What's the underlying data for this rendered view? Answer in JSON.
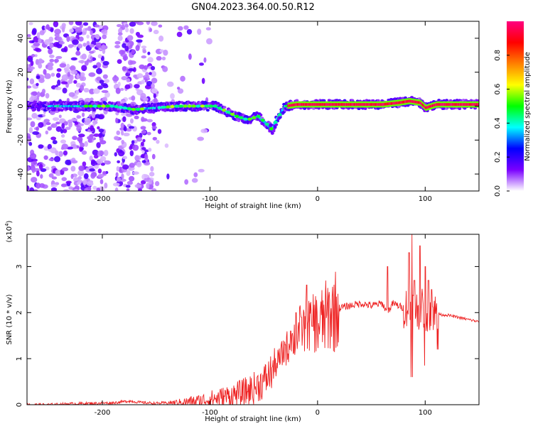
{
  "title": "GN04.2023.364.00.50.R12",
  "chart_data": [
    {
      "type": "heatmap",
      "xlabel": "Height of straight line (km)",
      "ylabel": "Frequency (Hz)",
      "xlim": [
        -270,
        150
      ],
      "ylim": [
        -50,
        50
      ],
      "xticks": [
        "-200",
        "-100",
        "0",
        "100"
      ],
      "xtick_values": [
        -200,
        -100,
        0,
        100
      ],
      "yticks": [
        "-40",
        "-20",
        "0",
        "20",
        "40"
      ],
      "ytick_values": [
        -40,
        -20,
        0,
        20,
        40
      ],
      "colorbar": {
        "label": "Normalized spectral amplitude",
        "range": [
          0,
          1
        ],
        "ticks": [
          "0.0",
          "0.2",
          "0.4",
          "0.6",
          "0.8"
        ],
        "tick_values": [
          0.0,
          0.2,
          0.4,
          0.6,
          0.8
        ],
        "colormap": [
          "#ffffff",
          "#7a00ff",
          "#0000ff",
          "#00ffff",
          "#00ff00",
          "#ffff00",
          "#ff8000",
          "#ff0000",
          "#ff0080"
        ]
      },
      "ridge": {
        "x": [
          -270,
          -240,
          -210,
          -190,
          -170,
          -150,
          -130,
          -110,
          -95,
          -85,
          -75,
          -65,
          -55,
          -48,
          -42,
          -38,
          -30,
          -20,
          -10,
          0,
          20,
          40,
          60,
          75,
          85,
          95,
          100,
          110,
          130,
          150
        ],
        "y": [
          0,
          0,
          0,
          0,
          -2,
          -1,
          0,
          0,
          0,
          -3,
          -6,
          -8,
          -6,
          -10,
          -14,
          -8,
          0,
          1,
          1,
          1,
          1,
          1,
          1,
          2,
          3,
          2,
          -1,
          1,
          1,
          1
        ]
      }
    },
    {
      "type": "line",
      "xlabel": "Height of straight line (km)",
      "ylabel": "SNR (10 * v/v)",
      "y_multiplier": "(x10^4)",
      "multiplier_base": "(x10",
      "multiplier_exp": "4",
      "xlim": [
        -270,
        150
      ],
      "ylim": [
        0,
        3.7
      ],
      "xticks": [
        "-200",
        "-100",
        "0",
        "100"
      ],
      "xtick_values": [
        -200,
        -100,
        0,
        100
      ],
      "yticks": [
        "0",
        "1",
        "2",
        "3"
      ],
      "ytick_values": [
        0,
        1,
        2,
        3
      ],
      "color": "#ee2222",
      "series": [
        {
          "x": [
            -270,
            -250,
            -230,
            -210,
            -190,
            -175,
            -165,
            -150,
            -130,
            -110,
            -100,
            -90,
            -80,
            -70,
            -60,
            -50,
            -40,
            -30,
            -25,
            -20,
            -15,
            -10,
            -5,
            0,
            10,
            20,
            30,
            40,
            50,
            60,
            65,
            70,
            80,
            88,
            92,
            96,
            100,
            105,
            110,
            115,
            120,
            130,
            140,
            150
          ],
          "y": [
            0.0,
            0.0,
            0.02,
            0.03,
            0.04,
            0.08,
            0.05,
            0.03,
            0.05,
            0.08,
            0.12,
            0.15,
            0.2,
            0.25,
            0.35,
            0.5,
            0.8,
            1.2,
            1.3,
            1.5,
            1.7,
            1.6,
            1.9,
            1.7,
            1.95,
            2.1,
            2.15,
            2.2,
            2.15,
            2.2,
            2.0,
            2.2,
            2.1,
            2.2,
            2.05,
            2.1,
            2.0,
            2.05,
            2.0,
            1.95,
            1.95,
            1.9,
            1.85,
            1.8
          ]
        }
      ],
      "spikes": {
        "x": [
          -30,
          -25,
          -20,
          -15,
          -10,
          -5,
          65,
          85,
          88,
          90,
          95,
          100,
          103,
          106
        ],
        "y": [
          1.3,
          1.6,
          2.0,
          1.9,
          2.6,
          1.7,
          3.0,
          3.3,
          3.7,
          2.7,
          3.45,
          3.0,
          2.7,
          2.5
        ]
      }
    }
  ]
}
